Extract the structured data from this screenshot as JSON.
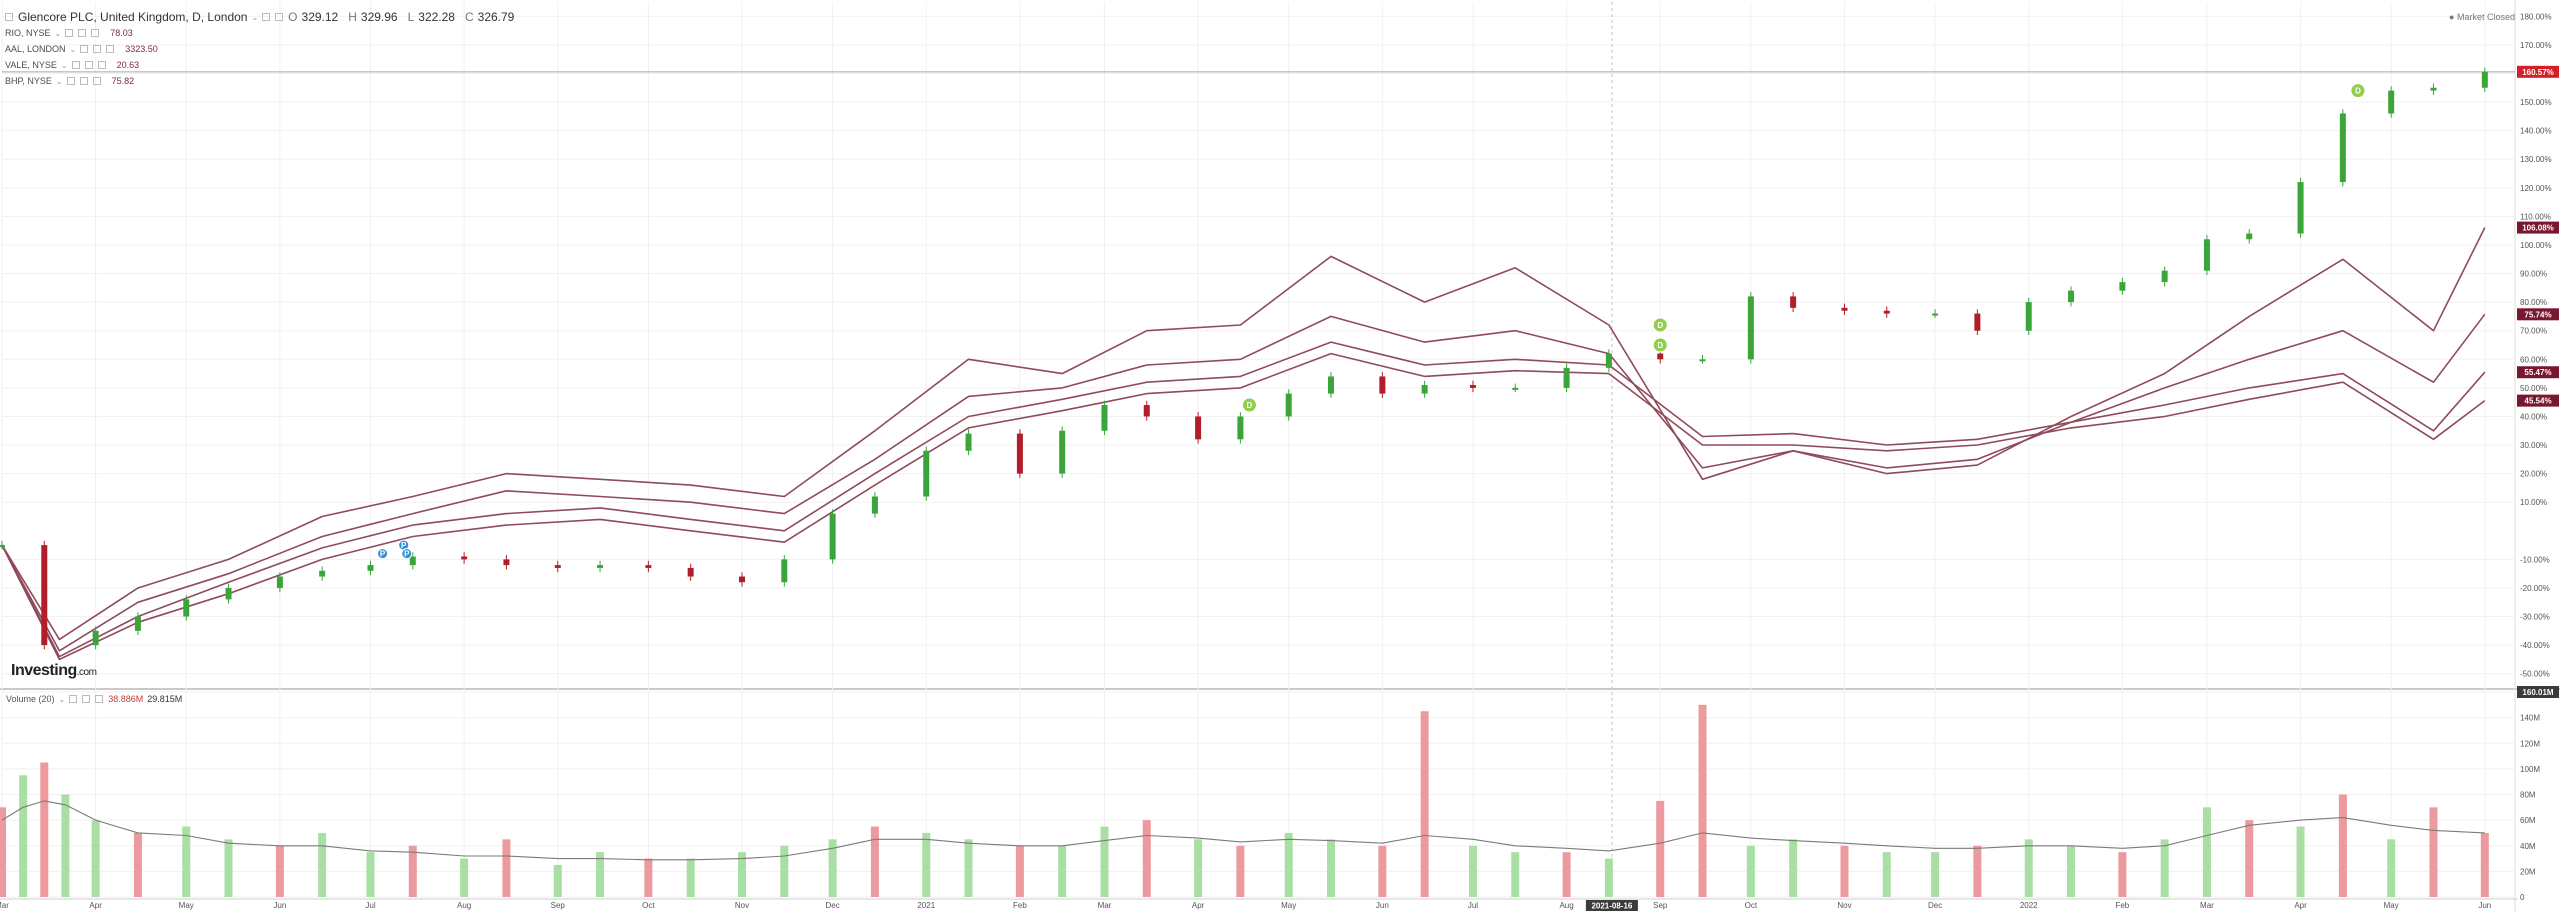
{
  "header": {
    "title": "Glencore PLC, United Kingdom, D, London",
    "ohlc": [
      {
        "label": "O",
        "value": "329.12"
      },
      {
        "label": "H",
        "value": "329.96"
      },
      {
        "label": "L",
        "value": "322.28"
      },
      {
        "label": "C",
        "value": "326.79"
      }
    ],
    "comparisons": [
      {
        "label": "RIO, NYSE",
        "value": "78.03"
      },
      {
        "label": "AAL, LONDON",
        "value": "3323.50"
      },
      {
        "label": "VALE, NYSE",
        "value": "20.63"
      },
      {
        "label": "BHP, NYSE",
        "value": "75.82"
      }
    ],
    "status": "Market Closed"
  },
  "logo": {
    "text": "Investing",
    "suffix": ".com"
  },
  "volume_header": {
    "label": "Volume (20)",
    "value1": "38.886M",
    "value2": "29.815M"
  },
  "colors": {
    "up": "#3aa53a",
    "down": "#b21d2a",
    "line": "#8f4a5b",
    "vol_up": "#a9dfa2",
    "vol_down": "#ec9a9e",
    "last_price": "#d62029",
    "badge_dark": "#7a1730",
    "event_green": "#8fcf4a",
    "event_blue": "#2f8fd8",
    "grid": "#f1f1f1"
  },
  "chart_data": [
    {
      "type": "line",
      "subtype": "candlestick with comparison lines",
      "y_axis": {
        "unit": "percent",
        "range": [
          -55,
          185
        ],
        "tick_labels": [
          "-50.00%",
          "-40.00%",
          "-30.00%",
          "-20.00%",
          "-10.00%",
          "10.00%",
          "20.00%",
          "30.00%",
          "40.00%",
          "50.00%",
          "60.00%",
          "70.00%",
          "80.00%",
          "90.00%",
          "100.00%",
          "110.00%",
          "120.00%",
          "130.00%",
          "140.00%",
          "150.00%",
          "160.00%",
          "170.00%",
          "180.00%"
        ],
        "tick_values": [
          -50,
          -40,
          -30,
          -20,
          -10,
          10,
          20,
          30,
          40,
          50,
          60,
          70,
          80,
          90,
          100,
          110,
          120,
          130,
          140,
          150,
          160,
          170,
          180
        ],
        "position": "right"
      },
      "x_axis": {
        "type": "date",
        "tick_labels": [
          "Mar",
          "Apr",
          "May",
          "Jun",
          "Jul",
          "Aug",
          "Sep",
          "Oct",
          "Nov",
          "Dec",
          "2021",
          "Feb",
          "Mar",
          "Apr",
          "May",
          "Jun",
          "Jul",
          "Aug",
          "Sep",
          "Oct",
          "Nov",
          "Dec",
          "2022",
          "Feb",
          "Mar",
          "Apr",
          "May",
          "Jun"
        ],
        "tick_dates": [
          "2020-03-01",
          "2020-04-01",
          "2020-05-01",
          "2020-06-01",
          "2020-07-01",
          "2020-08-01",
          "2020-09-01",
          "2020-10-01",
          "2020-11-01",
          "2020-12-01",
          "2021-01-01",
          "2021-02-01",
          "2021-03-01",
          "2021-04-01",
          "2021-05-01",
          "2021-06-01",
          "2021-07-01",
          "2021-08-01",
          "2021-09-01",
          "2021-10-01",
          "2021-11-01",
          "2021-12-01",
          "2022-01-01",
          "2022-02-01",
          "2022-03-01",
          "2022-04-01",
          "2022-05-01",
          "2022-06-01"
        ],
        "range": [
          "2020-03-01",
          "2022-06-10"
        ],
        "crosshair_label": "2021-08-16"
      },
      "grid": true,
      "crosshair_date": "2021-08-16",
      "crosshair_value_pct": 160.57,
      "last_value_badges": [
        {
          "label": "160.57%",
          "value": 160.57,
          "series": "Glencore PLC"
        },
        {
          "label": "106.08%",
          "value": 106.08,
          "series": "RIO, NYSE"
        },
        {
          "label": "75.74%",
          "value": 75.74,
          "series": "AAL, LONDON"
        },
        {
          "label": "55.47%",
          "value": 55.47,
          "series": "VALE, NYSE"
        },
        {
          "label": "45.54%",
          "value": 45.54,
          "series": "BHP, NYSE"
        }
      ],
      "candles": {
        "name": "Glencore PLC",
        "dates": [
          "2020-03-01",
          "2020-03-15",
          "2020-04-01",
          "2020-04-15",
          "2020-05-01",
          "2020-05-15",
          "2020-06-01",
          "2020-06-15",
          "2020-07-01",
          "2020-07-15",
          "2020-08-01",
          "2020-08-15",
          "2020-09-01",
          "2020-09-15",
          "2020-10-01",
          "2020-10-15",
          "2020-11-01",
          "2020-11-15",
          "2020-12-01",
          "2020-12-15",
          "2021-01-01",
          "2021-01-15",
          "2021-02-01",
          "2021-02-15",
          "2021-03-01",
          "2021-03-15",
          "2021-04-01",
          "2021-04-15",
          "2021-05-01",
          "2021-05-15",
          "2021-06-01",
          "2021-06-15",
          "2021-07-01",
          "2021-07-15",
          "2021-08-01",
          "2021-08-15",
          "2021-09-01",
          "2021-09-15",
          "2021-10-01",
          "2021-10-15",
          "2021-11-01",
          "2021-11-15",
          "2021-12-01",
          "2021-12-15",
          "2022-01-01",
          "2022-01-15",
          "2022-02-01",
          "2022-02-15",
          "2022-03-01",
          "2022-03-15",
          "2022-04-01",
          "2022-04-15",
          "2022-05-01",
          "2022-05-15",
          "2022-06-01"
        ],
        "values": [
          -5,
          -40,
          -35,
          -30,
          -24,
          -20,
          -16,
          -14,
          -12,
          -9,
          -10,
          -12,
          -13,
          -12,
          -13,
          -16,
          -18,
          -10,
          6,
          12,
          28,
          34,
          20,
          35,
          44,
          40,
          32,
          40,
          48,
          54,
          48,
          51,
          50,
          50,
          57,
          62,
          60,
          60,
          82,
          78,
          77,
          76,
          76,
          70,
          80,
          84,
          87,
          91,
          102,
          104,
          122,
          146,
          154,
          155,
          160.57
        ]
      },
      "series": [
        {
          "name": "RIO, NYSE",
          "dates": [
            "2020-03-01",
            "2020-03-20",
            "2020-04-15",
            "2020-05-15",
            "2020-06-15",
            "2020-07-15",
            "2020-08-15",
            "2020-09-15",
            "2020-10-15",
            "2020-11-15",
            "2020-12-15",
            "2021-01-15",
            "2021-02-15",
            "2021-03-15",
            "2021-04-15",
            "2021-05-15",
            "2021-06-15",
            "2021-07-15",
            "2021-08-15",
            "2021-09-15",
            "2021-10-15",
            "2021-11-15",
            "2021-12-15",
            "2022-01-15",
            "2022-02-15",
            "2022-03-15",
            "2022-04-15",
            "2022-05-15",
            "2022-06-01"
          ],
          "values": [
            -5,
            -38,
            -20,
            -10,
            5,
            12,
            20,
            18,
            16,
            12,
            35,
            60,
            55,
            70,
            72,
            96,
            80,
            92,
            72,
            18,
            28,
            20,
            23,
            40,
            55,
            75,
            95,
            70,
            106.08
          ]
        },
        {
          "name": "AAL, LONDON",
          "dates": [
            "2020-03-01",
            "2020-03-20",
            "2020-04-15",
            "2020-05-15",
            "2020-06-15",
            "2020-07-15",
            "2020-08-15",
            "2020-09-15",
            "2020-10-15",
            "2020-11-15",
            "2020-12-15",
            "2021-01-15",
            "2021-02-15",
            "2021-03-15",
            "2021-04-15",
            "2021-05-15",
            "2021-06-15",
            "2021-07-15",
            "2021-08-15",
            "2021-09-15",
            "2021-10-15",
            "2021-11-15",
            "2021-12-15",
            "2022-01-15",
            "2022-02-15",
            "2022-03-15",
            "2022-04-15",
            "2022-05-15",
            "2022-06-01"
          ],
          "values": [
            -5,
            -42,
            -25,
            -15,
            -2,
            6,
            14,
            12,
            10,
            6,
            25,
            47,
            50,
            58,
            60,
            75,
            66,
            70,
            62,
            22,
            28,
            22,
            25,
            38,
            50,
            60,
            70,
            52,
            75.74
          ]
        },
        {
          "name": "VALE, NYSE",
          "dates": [
            "2020-03-01",
            "2020-03-20",
            "2020-04-15",
            "2020-05-15",
            "2020-06-15",
            "2020-07-15",
            "2020-08-15",
            "2020-09-15",
            "2020-10-15",
            "2020-11-15",
            "2020-12-15",
            "2021-01-15",
            "2021-02-15",
            "2021-03-15",
            "2021-04-15",
            "2021-05-15",
            "2021-06-15",
            "2021-07-15",
            "2021-08-15",
            "2021-09-15",
            "2021-10-15",
            "2021-11-15",
            "2021-12-15",
            "2022-01-15",
            "2022-02-15",
            "2022-03-15",
            "2022-04-15",
            "2022-05-15",
            "2022-06-01"
          ],
          "values": [
            -5,
            -44,
            -30,
            -18,
            -6,
            2,
            6,
            8,
            4,
            0,
            20,
            40,
            46,
            52,
            54,
            66,
            58,
            60,
            58,
            33,
            34,
            30,
            32,
            38,
            44,
            50,
            55,
            35,
            55.47
          ]
        },
        {
          "name": "BHP, NYSE",
          "dates": [
            "2020-03-01",
            "2020-03-20",
            "2020-04-15",
            "2020-05-15",
            "2020-06-15",
            "2020-07-15",
            "2020-08-15",
            "2020-09-15",
            "2020-10-15",
            "2020-11-15",
            "2020-12-15",
            "2021-01-15",
            "2021-02-15",
            "2021-03-15",
            "2021-04-15",
            "2021-05-15",
            "2021-06-15",
            "2021-07-15",
            "2021-08-15",
            "2021-09-15",
            "2021-10-15",
            "2021-11-15",
            "2021-12-15",
            "2022-01-15",
            "2022-02-15",
            "2022-03-15",
            "2022-04-15",
            "2022-05-15",
            "2022-06-01"
          ],
          "values": [
            -5,
            -45,
            -32,
            -22,
            -10,
            -2,
            2,
            4,
            0,
            -4,
            16,
            36,
            42,
            48,
            50,
            62,
            54,
            56,
            55,
            30,
            30,
            28,
            30,
            36,
            40,
            46,
            52,
            32,
            45.54
          ]
        }
      ],
      "events": [
        {
          "type": "dividend",
          "label": "D",
          "date": "2021-04-18",
          "value": 44
        },
        {
          "type": "dividend",
          "label": "D",
          "date": "2021-09-01",
          "value": 65
        },
        {
          "type": "dividend",
          "label": "D",
          "date": "2021-09-01",
          "value": 72
        },
        {
          "type": "dividend",
          "label": "D",
          "date": "2022-04-20",
          "value": 154
        },
        {
          "type": "news",
          "label": "P",
          "date": "2020-07-05",
          "value": -8
        },
        {
          "type": "news",
          "label": "P",
          "date": "2020-07-12",
          "value": -5
        },
        {
          "type": "news",
          "label": "P",
          "date": "2020-07-13",
          "value": -8
        }
      ]
    },
    {
      "type": "bar",
      "name": "Volume (20)",
      "y_axis": {
        "range": [
          0,
          160
        ],
        "unit": "M",
        "tick_labels": [
          "0",
          "20M",
          "40M",
          "60M",
          "80M",
          "100M",
          "120M",
          "140M",
          "160.01M"
        ],
        "tick_values": [
          0,
          20,
          40,
          60,
          80,
          100,
          120,
          140,
          160
        ]
      },
      "x_axis": {
        "type": "date",
        "range": [
          "2020-03-01",
          "2022-06-10"
        ]
      },
      "bar_dates": [
        "2020-03-01",
        "2020-03-08",
        "2020-03-15",
        "2020-03-22",
        "2020-04-01",
        "2020-04-15",
        "2020-05-01",
        "2020-05-15",
        "2020-06-01",
        "2020-06-15",
        "2020-07-01",
        "2020-07-15",
        "2020-08-01",
        "2020-08-15",
        "2020-09-01",
        "2020-09-15",
        "2020-10-01",
        "2020-10-15",
        "2020-11-01",
        "2020-11-15",
        "2020-12-01",
        "2020-12-15",
        "2021-01-01",
        "2021-01-15",
        "2021-02-01",
        "2021-02-15",
        "2021-03-01",
        "2021-03-15",
        "2021-04-01",
        "2021-04-15",
        "2021-05-01",
        "2021-05-15",
        "2021-06-01",
        "2021-06-15",
        "2021-07-01",
        "2021-07-15",
        "2021-08-01",
        "2021-08-15",
        "2021-09-01",
        "2021-09-15",
        "2021-10-01",
        "2021-10-15",
        "2021-11-01",
        "2021-11-15",
        "2021-12-01",
        "2021-12-15",
        "2022-01-01",
        "2022-01-15",
        "2022-02-01",
        "2022-02-15",
        "2022-03-01",
        "2022-03-15",
        "2022-04-01",
        "2022-04-15",
        "2022-05-01",
        "2022-05-15",
        "2022-06-01"
      ],
      "values": [
        70,
        95,
        105,
        80,
        60,
        50,
        55,
        45,
        40,
        50,
        35,
        40,
        30,
        45,
        25,
        35,
        30,
        30,
        35,
        40,
        45,
        55,
        50,
        45,
        40,
        40,
        55,
        60,
        45,
        40,
        50,
        45,
        40,
        145,
        40,
        35,
        35,
        30,
        75,
        150,
        40,
        45,
        40,
        35,
        35,
        40,
        45,
        40,
        35,
        45,
        70,
        60,
        55,
        80,
        45,
        70,
        50
      ],
      "directions": [
        "down",
        "up",
        "down",
        "up",
        "up",
        "down",
        "up",
        "up",
        "down",
        "up",
        "up",
        "down",
        "up",
        "down",
        "up",
        "up",
        "down",
        "up",
        "up",
        "up",
        "up",
        "down",
        "up",
        "up",
        "down",
        "up",
        "up",
        "down",
        "up",
        "down",
        "up",
        "up",
        "down",
        "down",
        "up",
        "up",
        "down",
        "up",
        "down",
        "down",
        "up",
        "up",
        "down",
        "up",
        "up",
        "down",
        "up",
        "up",
        "down",
        "up",
        "up",
        "down",
        "up",
        "down",
        "up",
        "down",
        "down"
      ],
      "moving_average": {
        "name": "Volume (20)",
        "values": [
          60,
          70,
          75,
          72,
          60,
          50,
          48,
          42,
          40,
          40,
          36,
          35,
          32,
          32,
          30,
          30,
          29,
          29,
          30,
          32,
          38,
          45,
          45,
          42,
          40,
          40,
          44,
          48,
          46,
          43,
          45,
          44,
          42,
          48,
          45,
          40,
          38,
          36,
          42,
          50,
          46,
          44,
          42,
          40,
          38,
          38,
          40,
          40,
          38,
          40,
          48,
          56,
          60,
          62,
          56,
          52,
          50
        ]
      }
    }
  ]
}
